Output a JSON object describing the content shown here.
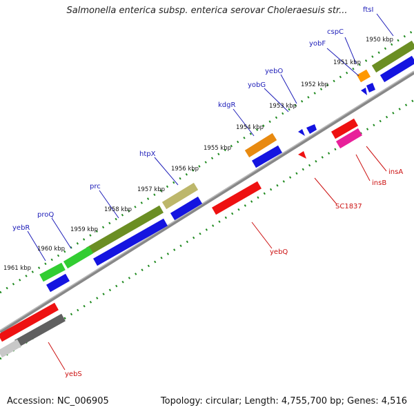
{
  "title": "Salmonella enterica subsp. enterica serovar Choleraesuis str...",
  "footer": {
    "accession": "Accession: NC_006905",
    "topology": "Topology: circular; Length: 4,755,700 bp; Genes: 4,516"
  },
  "scale_labels": [
    "1950 kbp",
    "1951 kbp",
    "1952 kbp",
    "1953 kbp",
    "1954 kbp",
    "1955 kbp",
    "1956 kbp",
    "1957 kbp",
    "1958 kbp",
    "1959 kbp",
    "1960 kbp",
    "1961 kbp"
  ],
  "genes": [
    {
      "name": "ftsI",
      "color": "#1c1cb8"
    },
    {
      "name": "cspC",
      "color": "#1c1cb8"
    },
    {
      "name": "yobF",
      "color": "#1c1cb8"
    },
    {
      "name": "yebO",
      "color": "#1c1cb8"
    },
    {
      "name": "yobG",
      "color": "#1c1cb8"
    },
    {
      "name": "kdgR",
      "color": "#1c1cb8"
    },
    {
      "name": "htpX",
      "color": "#1c1cb8"
    },
    {
      "name": "prc",
      "color": "#1c1cb8"
    },
    {
      "name": "proQ",
      "color": "#1c1cb8"
    },
    {
      "name": "yebR",
      "color": "#1c1cb8"
    },
    {
      "name": "insA",
      "color": "#cc1111"
    },
    {
      "name": "insB",
      "color": "#cc1111"
    },
    {
      "name": "SC1837",
      "color": "#cc1111"
    },
    {
      "name": "yebQ",
      "color": "#cc1111"
    },
    {
      "name": "yebS",
      "color": "#cc1111"
    }
  ]
}
